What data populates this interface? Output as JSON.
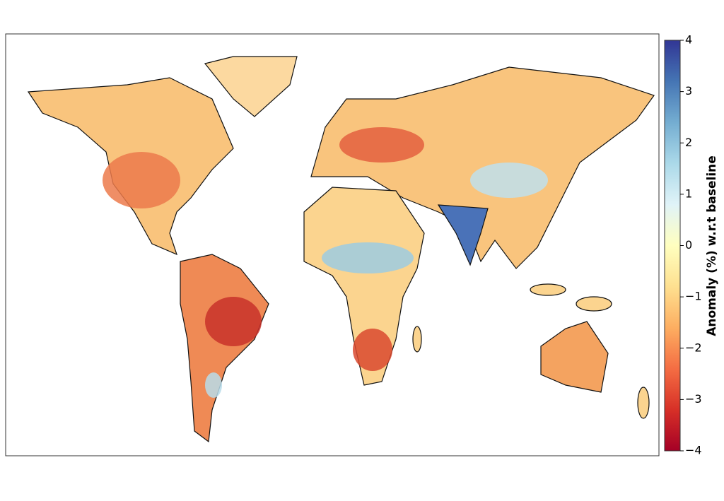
{
  "map": {
    "colorbar": {
      "label": "Anomaly (%) w.r.t baseline",
      "lim": [
        -4,
        4
      ],
      "ticks": [
        {
          "value": -4,
          "label": "−4"
        },
        {
          "value": -3,
          "label": "−3"
        },
        {
          "value": -2,
          "label": "−2"
        },
        {
          "value": -1,
          "label": "−1"
        },
        0,
        1,
        2,
        3,
        4
      ],
      "colors": [
        "#a50026",
        "#d73027",
        "#f46d43",
        "#fdae61",
        "#fee090",
        "#ffffbf",
        "#e0f3f8",
        "#abd9e9",
        "#74add1",
        "#4575b4",
        "#313695"
      ]
    }
  }
}
